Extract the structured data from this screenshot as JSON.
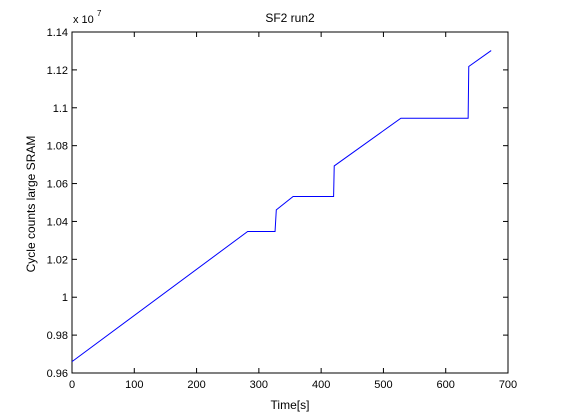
{
  "chart_data": {
    "type": "line",
    "title": "SF2 run2",
    "xlabel": "Time[s]",
    "ylabel": "Cycle counts large SRAM",
    "y_multiplier_label": "x 10",
    "y_multiplier_exponent": "7",
    "xlim": [
      0,
      700
    ],
    "ylim": [
      0.96,
      1.14
    ],
    "x_ticks": [
      0,
      100,
      200,
      300,
      400,
      500,
      600,
      700
    ],
    "x_tick_labels": [
      "0",
      "100",
      "200",
      "300",
      "400",
      "500",
      "600",
      "700"
    ],
    "y_ticks": [
      0.96,
      0.98,
      1.0,
      1.02,
      1.04,
      1.06,
      1.08,
      1.1,
      1.12,
      1.14
    ],
    "y_tick_labels": [
      "0.96",
      "0.98",
      "1",
      "1.02",
      "1.04",
      "1.06",
      "1.08",
      "1.1",
      "1.12",
      "1.14"
    ],
    "grid": false,
    "series": [
      {
        "color": "#0000ff",
        "x": [
          0,
          282,
          326,
          328,
          355,
          420,
          421,
          528,
          636,
          637,
          673
        ],
        "y": [
          0.966,
          1.0347,
          1.0347,
          1.0461,
          1.0532,
          1.0532,
          1.0693,
          1.0945,
          1.0945,
          1.1218,
          1.1302
        ]
      }
    ]
  }
}
